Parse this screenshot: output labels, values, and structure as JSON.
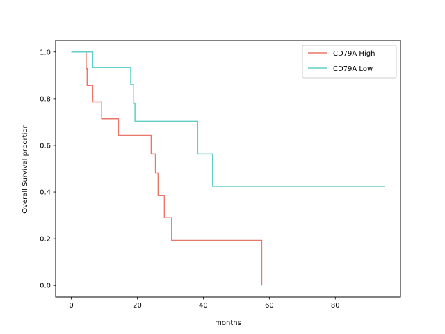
{
  "chart_data": {
    "type": "line",
    "subtype": "step (Kaplan-Meier survival curve)",
    "title": "",
    "xlabel": "months",
    "ylabel": "Overall Survival prportion",
    "xlim": [
      -4.75,
      99.75
    ],
    "ylim": [
      -0.05,
      1.05
    ],
    "xticks": [
      0,
      20,
      40,
      60,
      80
    ],
    "xtick_labels": [
      "0",
      "20",
      "40",
      "60",
      "80"
    ],
    "yticks": [
      0.0,
      0.2,
      0.4,
      0.6,
      0.8,
      1.0
    ],
    "ytick_labels": [
      "0.0",
      "0.2",
      "0.4",
      "0.6",
      "0.8",
      "1.0"
    ],
    "grid": false,
    "legend_position": "top-right",
    "series": [
      {
        "name": "CD79A High",
        "color": "#e8766b",
        "points": [
          [
            4.5,
            1.0
          ],
          [
            4.5,
            0.929
          ],
          [
            4.8,
            0.929
          ],
          [
            4.8,
            0.857
          ],
          [
            6.5,
            0.857
          ],
          [
            6.5,
            0.786
          ],
          [
            9.2,
            0.786
          ],
          [
            9.2,
            0.714
          ],
          [
            14.3,
            0.714
          ],
          [
            14.3,
            0.643
          ],
          [
            24.2,
            0.643
          ],
          [
            24.2,
            0.563
          ],
          [
            25.5,
            0.563
          ],
          [
            25.5,
            0.482
          ],
          [
            26.3,
            0.482
          ],
          [
            26.3,
            0.386
          ],
          [
            28.2,
            0.386
          ],
          [
            28.2,
            0.289
          ],
          [
            30.4,
            0.289
          ],
          [
            30.4,
            0.193
          ],
          [
            57.7,
            0.193
          ],
          [
            57.7,
            0.0
          ]
        ]
      },
      {
        "name": "CD79A Low",
        "color": "#62cfc7",
        "points": [
          [
            0.0,
            1.0
          ],
          [
            6.5,
            1.0
          ],
          [
            6.5,
            0.933
          ],
          [
            18.0,
            0.933
          ],
          [
            18.0,
            0.862
          ],
          [
            18.9,
            0.862
          ],
          [
            18.9,
            0.78
          ],
          [
            19.3,
            0.78
          ],
          [
            19.3,
            0.703
          ],
          [
            38.3,
            0.703
          ],
          [
            38.3,
            0.563
          ],
          [
            42.8,
            0.563
          ],
          [
            42.8,
            0.424
          ],
          [
            94.9,
            0.424
          ]
        ]
      }
    ]
  }
}
